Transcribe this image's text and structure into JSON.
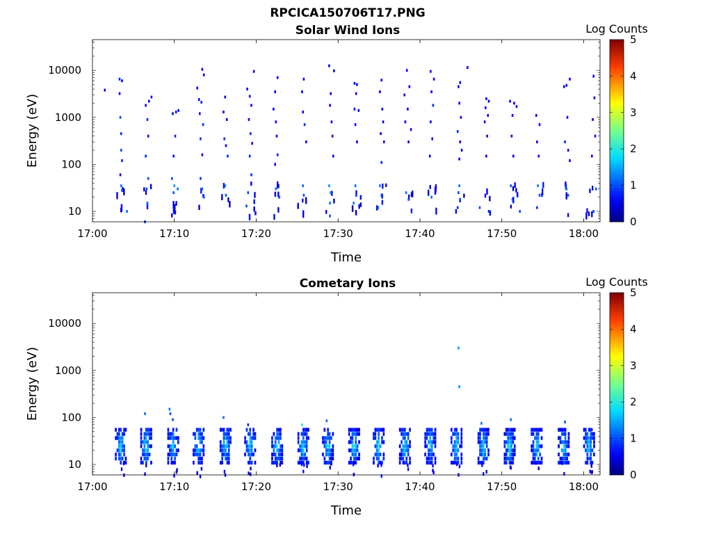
{
  "figure_title": "RPCICA150706T17.PNG",
  "chart_data": [
    {
      "type": "heatmap",
      "title": "Solar Wind Ions",
      "xlabel": "Time",
      "ylabel": "Energy (eV)",
      "yscale": "log",
      "ylim": [
        6,
        45000
      ],
      "x_unit": "minutes after 17:00",
      "xlim": [
        0,
        62
      ],
      "xticks": [
        0,
        10,
        20,
        30,
        40,
        50,
        60
      ],
      "xtick_labels": [
        "17:00",
        "17:10",
        "17:20",
        "17:30",
        "17:40",
        "17:50",
        "18:00"
      ],
      "yticks": [
        10,
        100,
        1000,
        10000
      ],
      "ytick_labels": [
        "10",
        "100",
        "1000",
        "10000"
      ],
      "colorbar": {
        "label": "Log Counts",
        "range": [
          0,
          5
        ],
        "ticks": [
          "0",
          "1",
          "2",
          "3",
          "4",
          "5"
        ]
      },
      "bursts": [
        3.3,
        6.6,
        9.9,
        13.2,
        16.3,
        19.3,
        22.4,
        25.6,
        28.9,
        32.1,
        35.2,
        38.4,
        41.5,
        44.8,
        48.1,
        51.3,
        54.6,
        57.8,
        60.8
      ],
      "points": [
        [
          1.5,
          3800,
          0.3
        ],
        [
          3.3,
          6500,
          0.4
        ],
        [
          3.6,
          6000,
          0.3
        ],
        [
          3.3,
          3200,
          0.3
        ],
        [
          3.4,
          1000,
          0.5
        ],
        [
          3.5,
          450,
          0.4
        ],
        [
          3.5,
          200,
          0.5
        ],
        [
          3.6,
          120,
          0.4
        ],
        [
          3.4,
          60,
          0.3
        ],
        [
          3.5,
          35,
          0.6
        ],
        [
          3.6,
          28,
          0.5
        ],
        [
          4.2,
          10,
          0.6
        ],
        [
          6.5,
          1800,
          0.3
        ],
        [
          6.9,
          2200,
          0.3
        ],
        [
          7.2,
          2700,
          0.3
        ],
        [
          6.7,
          900,
          0.4
        ],
        [
          6.8,
          400,
          0.3
        ],
        [
          6.5,
          150,
          0.4
        ],
        [
          6.8,
          50,
          0.5
        ],
        [
          6.6,
          30,
          0.5
        ],
        [
          6.7,
          15,
          0.6
        ],
        [
          6.4,
          6,
          0.4
        ],
        [
          9.8,
          1200,
          0.3
        ],
        [
          10.2,
          1300,
          0.3
        ],
        [
          10.5,
          1400,
          0.3
        ],
        [
          10.1,
          400,
          0.4
        ],
        [
          9.9,
          150,
          0.3
        ],
        [
          9.7,
          50,
          0.5
        ],
        [
          10.0,
          35,
          0.7
        ],
        [
          10.4,
          30,
          0.6
        ],
        [
          9.9,
          25,
          0.5
        ],
        [
          12.8,
          4200,
          0.3
        ],
        [
          13.4,
          10500,
          0.3
        ],
        [
          13.6,
          8000,
          0.3
        ],
        [
          13.0,
          2400,
          0.3
        ],
        [
          13.3,
          2100,
          0.4
        ],
        [
          13.1,
          1200,
          0.3
        ],
        [
          13.5,
          700,
          0.4
        ],
        [
          13.2,
          350,
          0.4
        ],
        [
          13.4,
          160,
          0.3
        ],
        [
          13.2,
          50,
          0.4
        ],
        [
          13.4,
          30,
          0.6
        ],
        [
          13.6,
          20,
          0.5
        ],
        [
          16.2,
          2700,
          0.3
        ],
        [
          16.0,
          1300,
          0.3
        ],
        [
          16.4,
          900,
          0.3
        ],
        [
          16.1,
          350,
          0.4
        ],
        [
          16.3,
          250,
          0.3
        ],
        [
          16.5,
          150,
          0.4
        ],
        [
          16.2,
          35,
          0.6
        ],
        [
          16.3,
          22,
          0.5
        ],
        [
          18.9,
          4000,
          0.3
        ],
        [
          19.2,
          2800,
          0.3
        ],
        [
          19.7,
          9500,
          0.3
        ],
        [
          19.4,
          1800,
          0.3
        ],
        [
          19.1,
          900,
          0.3
        ],
        [
          19.3,
          450,
          0.4
        ],
        [
          19.5,
          280,
          0.3
        ],
        [
          19.2,
          150,
          0.4
        ],
        [
          19.4,
          60,
          0.4
        ],
        [
          19.0,
          25,
          0.5
        ],
        [
          18.8,
          13,
          0.5
        ],
        [
          22.6,
          7000,
          0.3
        ],
        [
          22.3,
          3500,
          0.3
        ],
        [
          22.1,
          1500,
          0.3
        ],
        [
          22.4,
          800,
          0.3
        ],
        [
          22.5,
          400,
          0.3
        ],
        [
          22.6,
          160,
          0.4
        ],
        [
          22.3,
          100,
          0.3
        ],
        [
          22.4,
          30,
          0.6
        ],
        [
          22.8,
          20,
          0.5
        ],
        [
          25.8,
          6500,
          0.3
        ],
        [
          25.6,
          3500,
          0.3
        ],
        [
          25.7,
          1300,
          0.3
        ],
        [
          25.9,
          700,
          0.4
        ],
        [
          26.1,
          300,
          0.3
        ],
        [
          25.7,
          35,
          0.6
        ],
        [
          25.8,
          22,
          0.5
        ],
        [
          28.9,
          12500,
          0.3
        ],
        [
          29.5,
          9800,
          0.3
        ],
        [
          29.1,
          3200,
          0.3
        ],
        [
          29.0,
          1800,
          0.3
        ],
        [
          29.2,
          800,
          0.3
        ],
        [
          29.3,
          400,
          0.3
        ],
        [
          29.4,
          150,
          0.3
        ],
        [
          28.9,
          35,
          0.7
        ],
        [
          29.1,
          25,
          0.6
        ],
        [
          29.0,
          15,
          0.6
        ],
        [
          29.0,
          8,
          0.5
        ],
        [
          32.0,
          5300,
          0.3
        ],
        [
          32.3,
          5000,
          0.3
        ],
        [
          32.2,
          3200,
          0.3
        ],
        [
          32.0,
          1500,
          0.3
        ],
        [
          32.5,
          1400,
          0.3
        ],
        [
          32.1,
          700,
          0.3
        ],
        [
          32.3,
          300,
          0.3
        ],
        [
          32.1,
          35,
          0.6
        ],
        [
          32.2,
          22,
          0.5
        ],
        [
          31.9,
          15,
          0.6
        ],
        [
          35.3,
          6200,
          0.3
        ],
        [
          35.1,
          3500,
          0.3
        ],
        [
          35.4,
          1500,
          0.3
        ],
        [
          35.5,
          800,
          0.3
        ],
        [
          35.2,
          450,
          0.3
        ],
        [
          35.6,
          300,
          0.3
        ],
        [
          35.3,
          110,
          0.4
        ],
        [
          35.1,
          35,
          0.6
        ],
        [
          35.3,
          22,
          0.5
        ],
        [
          34.9,
          12,
          0.6
        ],
        [
          38.4,
          10000,
          0.3
        ],
        [
          38.7,
          4500,
          0.3
        ],
        [
          38.1,
          3000,
          0.3
        ],
        [
          38.5,
          1500,
          0.3
        ],
        [
          38.2,
          800,
          0.3
        ],
        [
          38.9,
          550,
          0.3
        ],
        [
          38.6,
          300,
          0.3
        ],
        [
          38.3,
          25,
          0.6
        ],
        [
          38.6,
          18,
          0.5
        ],
        [
          41.3,
          9500,
          0.3
        ],
        [
          41.7,
          6500,
          0.3
        ],
        [
          41.4,
          3500,
          0.3
        ],
        [
          41.6,
          1800,
          0.4
        ],
        [
          41.3,
          800,
          0.3
        ],
        [
          41.5,
          350,
          0.3
        ],
        [
          41.2,
          150,
          0.3
        ],
        [
          41.4,
          20,
          0.6
        ],
        [
          44.7,
          4500,
          0.3
        ],
        [
          44.9,
          5500,
          0.3
        ],
        [
          45.8,
          11500,
          0.3
        ],
        [
          44.8,
          2000,
          0.3
        ],
        [
          45.0,
          1000,
          0.3
        ],
        [
          44.6,
          500,
          0.4
        ],
        [
          44.9,
          300,
          0.3
        ],
        [
          45.1,
          200,
          0.3
        ],
        [
          44.8,
          130,
          0.3
        ],
        [
          44.8,
          35,
          0.6
        ],
        [
          44.7,
          25,
          0.5
        ],
        [
          44.9,
          18,
          0.5
        ],
        [
          44.6,
          12,
          0.4
        ],
        [
          48.1,
          2500,
          0.3
        ],
        [
          48.4,
          2200,
          0.3
        ],
        [
          48.0,
          1600,
          0.3
        ],
        [
          48.3,
          1100,
          0.3
        ],
        [
          47.9,
          800,
          0.3
        ],
        [
          48.2,
          400,
          0.3
        ],
        [
          48.1,
          150,
          0.3
        ],
        [
          47.3,
          12,
          0.5
        ],
        [
          48.4,
          10,
          0.4
        ],
        [
          51.0,
          2200,
          0.3
        ],
        [
          51.5,
          2000,
          0.3
        ],
        [
          51.8,
          1700,
          0.3
        ],
        [
          51.3,
          1100,
          0.3
        ],
        [
          51.2,
          400,
          0.3
        ],
        [
          51.4,
          150,
          0.3
        ],
        [
          51.1,
          35,
          0.5
        ],
        [
          51.3,
          18,
          0.5
        ],
        [
          52.2,
          10,
          0.5
        ],
        [
          54.2,
          1100,
          0.3
        ],
        [
          54.6,
          700,
          0.3
        ],
        [
          54.3,
          300,
          0.3
        ],
        [
          54.5,
          150,
          0.3
        ],
        [
          54.4,
          35,
          0.6
        ],
        [
          54.6,
          22,
          0.5
        ],
        [
          54.3,
          12,
          0.4
        ],
        [
          57.6,
          4500,
          0.3
        ],
        [
          57.9,
          4800,
          0.3
        ],
        [
          58.3,
          6500,
          0.3
        ],
        [
          58.0,
          1000,
          0.3
        ],
        [
          57.7,
          300,
          0.4
        ],
        [
          58.1,
          200,
          0.3
        ],
        [
          58.3,
          120,
          0.3
        ],
        [
          57.9,
          30,
          0.6
        ],
        [
          58.1,
          22,
          0.5
        ],
        [
          61.2,
          7500,
          0.3
        ],
        [
          61.3,
          2600,
          0.3
        ],
        [
          61.1,
          900,
          0.3
        ],
        [
          61.4,
          400,
          0.3
        ],
        [
          61.0,
          150,
          0.3
        ],
        [
          61.5,
          30,
          0.5
        ],
        [
          61.2,
          10,
          0.5
        ]
      ]
    },
    {
      "type": "heatmap",
      "title": "Cometary Ions",
      "xlabel": "Time",
      "ylabel": "Energy (eV)",
      "yscale": "log",
      "ylim": [
        6,
        45000
      ],
      "x_unit": "minutes after 17:00",
      "xlim": [
        0,
        62
      ],
      "xticks": [
        0,
        10,
        20,
        30,
        40,
        50,
        60
      ],
      "xtick_labels": [
        "17:00",
        "17:10",
        "17:20",
        "17:30",
        "17:40",
        "17:50",
        "18:00"
      ],
      "yticks": [
        10,
        100,
        1000,
        10000
      ],
      "ytick_labels": [
        "10",
        "100",
        "1000",
        "10000"
      ],
      "colorbar": {
        "label": "Log Counts",
        "range": [
          0,
          5
        ],
        "ticks": [
          "0",
          "1",
          "2",
          "3",
          "4",
          "5"
        ]
      },
      "bursts": [
        3.5,
        6.6,
        9.9,
        13.0,
        16.3,
        19.3,
        22.6,
        25.8,
        28.8,
        32.0,
        35.0,
        38.2,
        41.3,
        44.5,
        47.8,
        51.0,
        54.3,
        57.6,
        60.7
      ],
      "points": [
        [
          6.4,
          120,
          0.6
        ],
        [
          9.4,
          150,
          0.6
        ],
        [
          9.5,
          120,
          0.5
        ],
        [
          9.8,
          90,
          0.5
        ],
        [
          16.0,
          100,
          0.6
        ],
        [
          19.0,
          70,
          0.4
        ],
        [
          25.6,
          70,
          1.0
        ],
        [
          28.6,
          85,
          0.6
        ],
        [
          44.7,
          3000,
          0.7
        ],
        [
          44.8,
          450,
          0.7
        ],
        [
          47.5,
          75,
          0.6
        ],
        [
          51.1,
          90,
          0.6
        ],
        [
          57.7,
          80,
          0.5
        ],
        [
          61.0,
          55,
          0.4
        ]
      ]
    }
  ]
}
